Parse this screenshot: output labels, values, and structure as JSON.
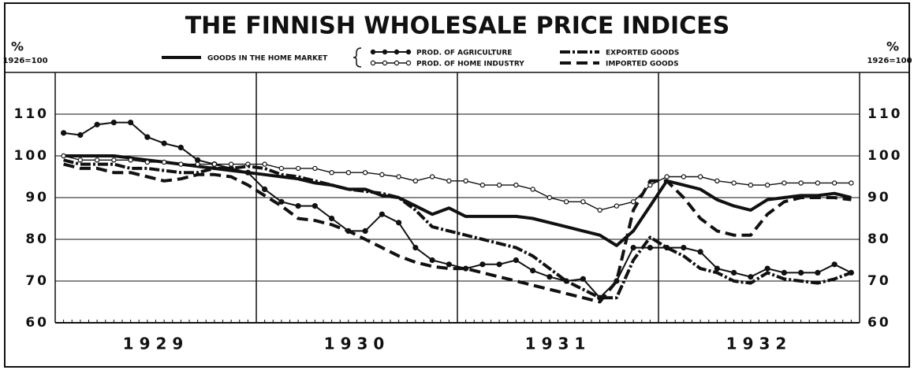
{
  "chart_data": {
    "type": "line",
    "title": "THE FINNISH WHOLESALE PRICE INDICES",
    "y_label_left": {
      "symbol": "%",
      "base": "1926=100"
    },
    "y_label_right": {
      "symbol": "%",
      "base": "1926=100"
    },
    "x_labels": [
      "1929",
      "1930",
      "1931",
      "1932"
    ],
    "ylim": [
      60,
      120
    ],
    "yticks": [
      60,
      70,
      80,
      90,
      100,
      110
    ],
    "grid": true,
    "series": [
      {
        "name": "GOODS IN THE HOME MARKET",
        "color": "#111",
        "style": "solid",
        "values": [
          100,
          100,
          100,
          100,
          99.5,
          99,
          98.5,
          98,
          97.5,
          97,
          96.5,
          96,
          95.5,
          95,
          94.5,
          93.5,
          93,
          92,
          92,
          90.5,
          90,
          88,
          86,
          87.5,
          85.5,
          85.5,
          85.5,
          85.5,
          85,
          84,
          83,
          82,
          81,
          78.5,
          82,
          88,
          94,
          93,
          92,
          89.5,
          88,
          87,
          89.5,
          90,
          90.5,
          90.5,
          91,
          90
        ]
      },
      {
        "name": "PROD. OF AGRICULTURE",
        "color": "#111",
        "style": "dots",
        "values": [
          105.5,
          105,
          107.5,
          108,
          108,
          104.5,
          103,
          102,
          99,
          98,
          97,
          96,
          92,
          89,
          88,
          88,
          85,
          82,
          82,
          86,
          84,
          78,
          75,
          74,
          73,
          74,
          74,
          75,
          72.5,
          71,
          70,
          70.5,
          66,
          70,
          78,
          78,
          78,
          78,
          77,
          73,
          72,
          71,
          73,
          72,
          72,
          72,
          74,
          72
        ]
      },
      {
        "name": "PROD. OF HOME INDUSTRY",
        "color": "#111",
        "style": "open-dots",
        "values": [
          100,
          99,
          99,
          99,
          99,
          98.5,
          98.5,
          98,
          98,
          98,
          98,
          98,
          98,
          97,
          97,
          97,
          96,
          96,
          96,
          95.5,
          95,
          94,
          95,
          94,
          94,
          93,
          93,
          93,
          92,
          90,
          89,
          89,
          87,
          88,
          89,
          93,
          95,
          95,
          95,
          94,
          93.5,
          93,
          93,
          93.5,
          93.5,
          93.5,
          93.5,
          93.5
        ]
      },
      {
        "name": "EXPORTED GOODS",
        "color": "#111",
        "style": "dash-dot",
        "values": [
          99,
          98,
          98,
          98,
          97,
          97,
          96.5,
          96,
          96,
          97,
          97,
          97.5,
          97,
          95.5,
          95,
          94,
          93,
          92,
          91.5,
          91,
          90,
          87,
          83,
          82,
          81,
          80,
          79,
          78,
          76,
          73,
          70,
          68,
          66,
          66,
          75,
          80.5,
          78,
          76,
          73,
          72,
          70,
          69.5,
          72,
          70.5,
          70,
          69.5,
          70.5,
          72
        ]
      },
      {
        "name": "IMPORTED GOODS",
        "color": "#111",
        "style": "dashed",
        "values": [
          98,
          97,
          97,
          96,
          96,
          95,
          94,
          94.5,
          95.5,
          95.5,
          95,
          93,
          90.5,
          88,
          85,
          84.5,
          83.5,
          82,
          80,
          78,
          76,
          74.5,
          73.5,
          73,
          73,
          72,
          71,
          70,
          69,
          68,
          67,
          66,
          65,
          70,
          87,
          94,
          94,
          90,
          85,
          82,
          81,
          81,
          86,
          89,
          90,
          90,
          90,
          89.5
        ]
      }
    ]
  }
}
